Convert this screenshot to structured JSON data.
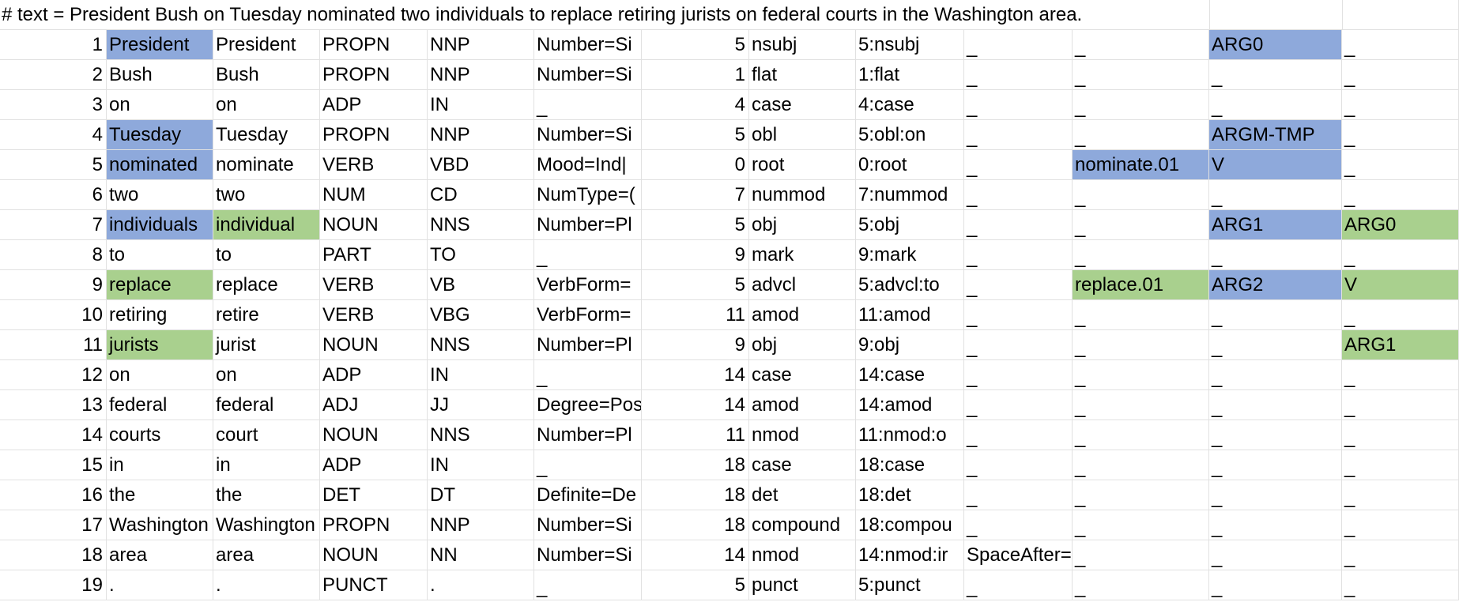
{
  "sheet": {
    "text_line": "# text = President Bush on Tuesday nominated two individuals to replace retiring jurists on federal courts in the Washington area.",
    "colors": {
      "blue": "#8EA9DB",
      "green": "#A9D08E",
      "grid": "#E1E1E1"
    },
    "rows": [
      [
        "1",
        "President",
        "President",
        "PROPN",
        "NNP",
        "Number=Si",
        "5",
        "nsubj",
        "5:nsubj",
        "_",
        "_",
        "ARG0",
        "_"
      ],
      [
        "2",
        "Bush",
        "Bush",
        "PROPN",
        "NNP",
        "Number=Si",
        "1",
        "flat",
        "1:flat",
        "_",
        "_",
        "_",
        "_"
      ],
      [
        "3",
        "on",
        "on",
        "ADP",
        "IN",
        "_",
        "4",
        "case",
        "4:case",
        "_",
        "_",
        "_",
        "_"
      ],
      [
        "4",
        "Tuesday",
        "Tuesday",
        "PROPN",
        "NNP",
        "Number=Si",
        "5",
        "obl",
        "5:obl:on",
        "_",
        "_",
        "ARGM-TMP",
        "_"
      ],
      [
        "5",
        "nominated",
        "nominate",
        "VERB",
        "VBD",
        "Mood=Ind|",
        "0",
        "root",
        "0:root",
        "_",
        "nominate.01",
        "V",
        "_"
      ],
      [
        "6",
        "two",
        "two",
        "NUM",
        "CD",
        "NumType=(",
        "7",
        "nummod",
        "7:nummod",
        "_",
        "_",
        "_",
        "_"
      ],
      [
        "7",
        "individuals",
        "individual",
        "NOUN",
        "NNS",
        "Number=Pl",
        "5",
        "obj",
        "5:obj",
        "_",
        "_",
        "ARG1",
        "ARG0"
      ],
      [
        "8",
        "to",
        "to",
        "PART",
        "TO",
        "_",
        "9",
        "mark",
        "9:mark",
        "_",
        "_",
        "_",
        "_"
      ],
      [
        "9",
        "replace",
        "replace",
        "VERB",
        "VB",
        "VerbForm=",
        "5",
        "advcl",
        "5:advcl:to",
        "_",
        "replace.01",
        "ARG2",
        "V"
      ],
      [
        "10",
        "retiring",
        "retire",
        "VERB",
        "VBG",
        "VerbForm=",
        "11",
        "amod",
        "11:amod",
        "_",
        "_",
        "_",
        "_"
      ],
      [
        "11",
        "jurists",
        "jurist",
        "NOUN",
        "NNS",
        "Number=Pl",
        "9",
        "obj",
        "9:obj",
        "_",
        "_",
        "_",
        "ARG1"
      ],
      [
        "12",
        "on",
        "on",
        "ADP",
        "IN",
        "_",
        "14",
        "case",
        "14:case",
        "_",
        "_",
        "_",
        "_"
      ],
      [
        "13",
        "federal",
        "federal",
        "ADJ",
        "JJ",
        "Degree=Pos",
        "14",
        "amod",
        "14:amod",
        "_",
        "_",
        "_",
        "_"
      ],
      [
        "14",
        "courts",
        "court",
        "NOUN",
        "NNS",
        "Number=Pl",
        "11",
        "nmod",
        "11:nmod:o",
        "_",
        "_",
        "_",
        "_"
      ],
      [
        "15",
        "in",
        "in",
        "ADP",
        "IN",
        "_",
        "18",
        "case",
        "18:case",
        "_",
        "_",
        "_",
        "_"
      ],
      [
        "16",
        "the",
        "the",
        "DET",
        "DT",
        "Definite=De",
        "18",
        "det",
        "18:det",
        "_",
        "_",
        "_",
        "_"
      ],
      [
        "17",
        "Washington",
        "Washington",
        "PROPN",
        "NNP",
        "Number=Si",
        "18",
        "compound",
        "18:compou",
        "_",
        "_",
        "_",
        "_"
      ],
      [
        "18",
        "area",
        "area",
        "NOUN",
        "NN",
        "Number=Si",
        "14",
        "nmod",
        "14:nmod:ir",
        "SpaceAfter=",
        "_",
        "_",
        "_"
      ],
      [
        "19",
        ".",
        ".",
        "PUNCT",
        ".",
        "_",
        "5",
        "punct",
        "5:punct",
        "_",
        "_",
        "_",
        "_"
      ]
    ],
    "highlights": [
      {
        "row": 0,
        "col": 1,
        "color": "blue"
      },
      {
        "row": 0,
        "col": 11,
        "color": "blue"
      },
      {
        "row": 3,
        "col": 1,
        "color": "blue"
      },
      {
        "row": 3,
        "col": 11,
        "color": "blue"
      },
      {
        "row": 4,
        "col": 1,
        "color": "blue"
      },
      {
        "row": 4,
        "col": 10,
        "color": "blue"
      },
      {
        "row": 4,
        "col": 11,
        "color": "blue"
      },
      {
        "row": 6,
        "col": 1,
        "color": "blue"
      },
      {
        "row": 6,
        "col": 2,
        "color": "green"
      },
      {
        "row": 6,
        "col": 11,
        "color": "blue"
      },
      {
        "row": 6,
        "col": 12,
        "color": "green"
      },
      {
        "row": 8,
        "col": 1,
        "color": "green"
      },
      {
        "row": 8,
        "col": 10,
        "color": "green"
      },
      {
        "row": 8,
        "col": 11,
        "color": "blue"
      },
      {
        "row": 8,
        "col": 12,
        "color": "green"
      },
      {
        "row": 10,
        "col": 1,
        "color": "green"
      },
      {
        "row": 10,
        "col": 12,
        "color": "green"
      }
    ]
  }
}
